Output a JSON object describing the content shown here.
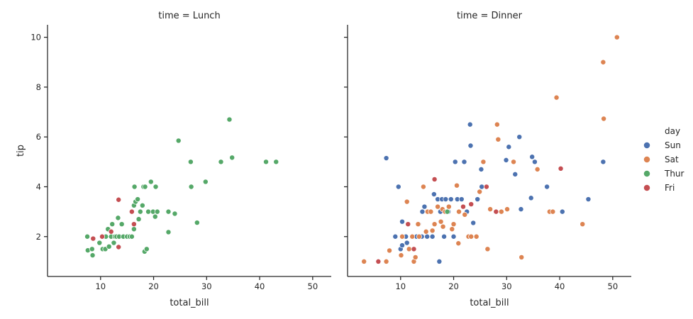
{
  "chart_data": {
    "type": "scatter",
    "facet_var": "time",
    "hue_var": "day",
    "xlabel": "total_bill",
    "ylabel": "tip",
    "xlim": [
      0,
      53.5
    ],
    "ylim": [
      0.4,
      10.5
    ],
    "xticks": [
      10,
      20,
      30,
      40,
      50
    ],
    "yticks": [
      2,
      4,
      6,
      8,
      10
    ],
    "grid": false,
    "legend": {
      "title": "day",
      "placement": "right",
      "entries": [
        {
          "name": "Sun",
          "color": "#4c72b0"
        },
        {
          "name": "Sat",
          "color": "#dd8452"
        },
        {
          "name": "Thur",
          "color": "#55a868"
        },
        {
          "name": "Fri",
          "color": "#c44e52"
        }
      ]
    },
    "panels": [
      {
        "title": "time = Lunch",
        "series": [
          {
            "name": "Thur",
            "points": [
              [
                7.5,
                2.0
              ],
              [
                7.6,
                1.45
              ],
              [
                8.4,
                1.5
              ],
              [
                8.5,
                1.25
              ],
              [
                9.8,
                1.75
              ],
              [
                10.4,
                1.5
              ],
              [
                10.9,
                1.5
              ],
              [
                11.0,
                2.0
              ],
              [
                11.4,
                2.3
              ],
              [
                11.6,
                1.6
              ],
              [
                12.0,
                2.0
              ],
              [
                12.2,
                2.5
              ],
              [
                12.5,
                1.75
              ],
              [
                12.7,
                2.0
              ],
              [
                13.0,
                2.0
              ],
              [
                13.3,
                2.75
              ],
              [
                13.5,
                2.0
              ],
              [
                14.0,
                2.5
              ],
              [
                14.3,
                2.0
              ],
              [
                15.0,
                2.0
              ],
              [
                15.5,
                2.0
              ],
              [
                15.9,
                2.0
              ],
              [
                16.3,
                2.3
              ],
              [
                16.3,
                3.25
              ],
              [
                16.4,
                4.0
              ],
              [
                16.6,
                3.4
              ],
              [
                17.0,
                3.5
              ],
              [
                17.2,
                2.7
              ],
              [
                17.5,
                3.0
              ],
              [
                17.9,
                3.25
              ],
              [
                18.1,
                4.0
              ],
              [
                18.3,
                1.4
              ],
              [
                18.4,
                4.0
              ],
              [
                18.7,
                1.5
              ],
              [
                19.0,
                3.0
              ],
              [
                19.5,
                4.2
              ],
              [
                19.9,
                3.0
              ],
              [
                20.3,
                2.8
              ],
              [
                20.4,
                4.0
              ],
              [
                20.7,
                3.0
              ],
              [
                22.8,
                3.0
              ],
              [
                22.8,
                2.18
              ],
              [
                24.0,
                2.92
              ],
              [
                24.7,
                5.85
              ],
              [
                27.0,
                5.0
              ],
              [
                27.1,
                4.0
              ],
              [
                28.2,
                2.56
              ],
              [
                29.8,
                4.2
              ],
              [
                32.7,
                5.0
              ],
              [
                34.3,
                6.7
              ],
              [
                34.8,
                5.17
              ],
              [
                41.2,
                5.0
              ],
              [
                43.1,
                5.0
              ]
            ]
          },
          {
            "name": "Fri",
            "points": [
              [
                8.6,
                1.92
              ],
              [
                10.3,
                2.0
              ],
              [
                12.0,
                2.2
              ],
              [
                13.4,
                1.58
              ],
              [
                13.4,
                3.48
              ],
              [
                15.9,
                3.0
              ],
              [
                16.3,
                2.5
              ]
            ]
          }
        ]
      },
      {
        "title": "time = Dinner",
        "series": [
          {
            "name": "Sun",
            "points": [
              [
                7.3,
                5.15
              ],
              [
                9.0,
                2.0
              ],
              [
                9.6,
                4.0
              ],
              [
                10.0,
                1.5
              ],
              [
                10.3,
                1.65
              ],
              [
                10.3,
                2.6
              ],
              [
                11.0,
                2.0
              ],
              [
                11.2,
                1.75
              ],
              [
                13.0,
                2.0
              ],
              [
                13.4,
                2.5
              ],
              [
                14.0,
                2.0
              ],
              [
                14.1,
                3.0
              ],
              [
                14.5,
                3.2
              ],
              [
                15.0,
                2.0
              ],
              [
                15.4,
                3.0
              ],
              [
                16.0,
                2.0
              ],
              [
                16.3,
                3.7
              ],
              [
                17.0,
                3.5
              ],
              [
                17.3,
                1.0
              ],
              [
                17.5,
                3.0
              ],
              [
                17.8,
                3.5
              ],
              [
                18.2,
                2.0
              ],
              [
                18.5,
                3.5
              ],
              [
                19.0,
                3.0
              ],
              [
                19.5,
                3.5
              ],
              [
                20.0,
                2.0
              ],
              [
                20.3,
                5.0
              ],
              [
                20.7,
                3.5
              ],
              [
                21.5,
                3.5
              ],
              [
                22.0,
                5.0
              ],
              [
                22.5,
                3.0
              ],
              [
                23.1,
                6.5
              ],
              [
                23.2,
                5.65
              ],
              [
                23.7,
                2.55
              ],
              [
                24.5,
                3.5
              ],
              [
                25.2,
                4.7
              ],
              [
                25.3,
                4.0
              ],
              [
                29.9,
                5.07
              ],
              [
                30.4,
                5.6
              ],
              [
                31.6,
                4.5
              ],
              [
                32.4,
                6.0
              ],
              [
                32.7,
                3.1
              ],
              [
                34.6,
                3.55
              ],
              [
                34.8,
                5.2
              ],
              [
                35.3,
                5.0
              ],
              [
                37.6,
                4.0
              ],
              [
                40.5,
                3.0
              ],
              [
                45.4,
                3.5
              ],
              [
                48.2,
                5.0
              ]
            ]
          },
          {
            "name": "Sat",
            "points": [
              [
                3.1,
                1.0
              ],
              [
                7.3,
                1.0
              ],
              [
                7.9,
                1.44
              ],
              [
                10.1,
                1.25
              ],
              [
                10.3,
                2.0
              ],
              [
                11.2,
                3.4
              ],
              [
                11.6,
                1.5
              ],
              [
                12.2,
                2.0
              ],
              [
                12.5,
                1.0
              ],
              [
                12.8,
                1.17
              ],
              [
                13.3,
                2.5
              ],
              [
                13.5,
                2.0
              ],
              [
                14.3,
                4.0
              ],
              [
                14.8,
                2.2
              ],
              [
                15.1,
                3.0
              ],
              [
                15.7,
                3.0
              ],
              [
                16.0,
                2.24
              ],
              [
                16.4,
                2.5
              ],
              [
                17.0,
                3.2
              ],
              [
                17.6,
                2.6
              ],
              [
                17.9,
                3.1
              ],
              [
                18.0,
                2.4
              ],
              [
                18.4,
                3.0
              ],
              [
                19.1,
                3.2
              ],
              [
                19.7,
                2.3
              ],
              [
                20.0,
                2.5
              ],
              [
                20.6,
                4.05
              ],
              [
                20.9,
                1.73
              ],
              [
                21.0,
                3.0
              ],
              [
                22.1,
                2.88
              ],
              [
                22.8,
                2.0
              ],
              [
                23.3,
                2.0
              ],
              [
                24.3,
                2.0
              ],
              [
                24.9,
                3.8
              ],
              [
                25.6,
                5.0
              ],
              [
                26.4,
                1.5
              ],
              [
                26.9,
                3.1
              ],
              [
                28.2,
                6.5
              ],
              [
                28.4,
                5.9
              ],
              [
                29.0,
                3.0
              ],
              [
                30.1,
                3.1
              ],
              [
                31.3,
                5.0
              ],
              [
                32.8,
                1.17
              ],
              [
                35.8,
                4.7
              ],
              [
                38.1,
                3.0
              ],
              [
                38.7,
                3.0
              ],
              [
                39.4,
                7.58
              ],
              [
                44.3,
                2.5
              ],
              [
                48.2,
                9.0
              ],
              [
                48.3,
                6.73
              ],
              [
                50.8,
                10.0
              ]
            ]
          },
          {
            "name": "Thur",
            "points": [
              [
                18.8,
                3.0
              ]
            ]
          },
          {
            "name": "Fri",
            "points": [
              [
                5.8,
                1.0
              ],
              [
                11.4,
                2.5
              ],
              [
                12.5,
                1.5
              ],
              [
                16.4,
                4.3
              ],
              [
                21.8,
                3.2
              ],
              [
                23.3,
                3.3
              ],
              [
                26.2,
                4.0
              ],
              [
                28.0,
                3.0
              ],
              [
                40.2,
                4.73
              ]
            ]
          }
        ]
      }
    ]
  }
}
